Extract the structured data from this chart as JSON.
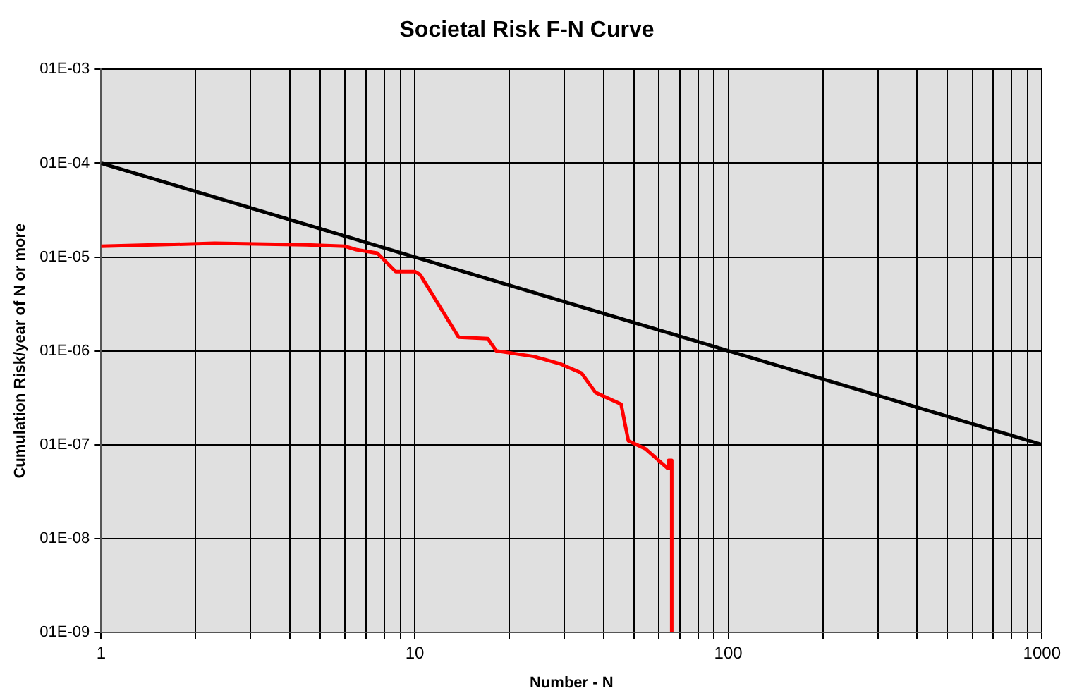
{
  "chart_data": {
    "type": "line",
    "title": "Societal Risk F-N Curve",
    "xlabel": "Number - N",
    "ylabel": "Cumulation Risk/year of N or more",
    "log": "xy",
    "grid": true,
    "legend": false,
    "marker": "none",
    "line_style": "solid",
    "xlim": [
      1,
      1000
    ],
    "ylim": [
      1e-09,
      0.001
    ],
    "xticks": [
      1,
      {
        "value": 2,
        "label": null
      },
      {
        "value": 3,
        "label": null
      },
      {
        "value": 4,
        "label": null
      },
      {
        "value": 5,
        "label": null
      },
      {
        "value": 6,
        "label": null
      },
      {
        "value": 7,
        "label": null
      },
      {
        "value": 8,
        "label": null
      },
      {
        "value": 9,
        "label": null
      },
      10,
      {
        "value": 20,
        "label": null
      },
      {
        "value": 30,
        "label": null
      },
      {
        "value": 40,
        "label": null
      },
      {
        "value": 50,
        "label": null
      },
      {
        "value": 60,
        "label": null
      },
      {
        "value": 70,
        "label": null
      },
      {
        "value": 80,
        "label": null
      },
      {
        "value": 90,
        "label": null
      },
      100,
      {
        "value": 200,
        "label": null
      },
      {
        "value": 300,
        "label": null
      },
      {
        "value": 400,
        "label": null
      },
      {
        "value": 500,
        "label": null
      },
      {
        "value": 600,
        "label": null
      },
      {
        "value": 700,
        "label": null
      },
      {
        "value": 800,
        "label": null
      },
      {
        "value": 900,
        "label": null
      },
      1000
    ],
    "yticks": [
      {
        "value": 1e-09,
        "label": "01E-09"
      },
      {
        "value": 1e-08,
        "label": "01E-08"
      },
      {
        "value": 1e-07,
        "label": "01E-07"
      },
      {
        "value": 1e-06,
        "label": "01E-06"
      },
      {
        "value": 1e-05,
        "label": "01E-05"
      },
      {
        "value": 0.0001,
        "label": "01E-04"
      },
      {
        "value": 0.001,
        "label": "01E-03"
      }
    ],
    "series": [
      {
        "color": "#000000",
        "x": [
          1,
          1000
        ],
        "values": [
          0.0001,
          1e-07
        ]
      },
      {
        "color": "#ff0000",
        "x": [
          1,
          2.3,
          4.5,
          6,
          6.5,
          7.6,
          8.7,
          10,
          10.4,
          13.8,
          17.1,
          18.2,
          24,
          29,
          34,
          37.7,
          45.5,
          48,
          54.5,
          64,
          64.5,
          66,
          66
        ],
        "values": [
          1.3e-05,
          1.4e-05,
          1.35e-05,
          1.3e-05,
          1.2e-05,
          1.1e-05,
          7e-06,
          7e-06,
          6.5e-06,
          1.4e-06,
          1.35e-06,
          1e-06,
          8.7e-07,
          7.3e-07,
          5.8e-07,
          3.6e-07,
          2.7e-07,
          1.1e-07,
          9e-08,
          5.6e-08,
          6.8e-08,
          6.8e-08,
          1e-09
        ]
      }
    ]
  }
}
